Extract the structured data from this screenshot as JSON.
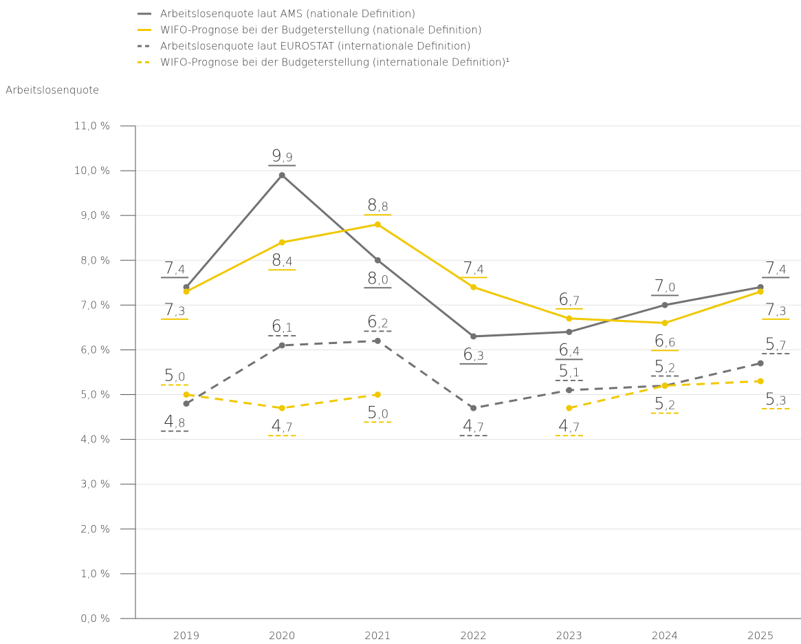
{
  "chart_data": {
    "type": "line",
    "y_axis_label": "Arbeitslosenquote",
    "categories": [
      "2019",
      "2020",
      "2021",
      "2022",
      "2023",
      "2024",
      "2025"
    ],
    "series": [
      {
        "name": "Arbeitslosenquote laut AMS (nationale Definition)",
        "color": "#727272",
        "dashed": false,
        "values": [
          7.4,
          9.9,
          8.0,
          6.3,
          6.4,
          7.0,
          7.4
        ],
        "value_labels": [
          "7,4",
          "9,9",
          "8,0",
          "6,3",
          "6,4",
          "7,0",
          "7,4"
        ]
      },
      {
        "name": "WIFO-Prognose bei der Budgeterstellung (nationale Definition)",
        "color": "#f0c800",
        "dashed": false,
        "values": [
          7.3,
          8.4,
          8.8,
          7.4,
          6.7,
          6.6,
          7.3
        ],
        "value_labels": [
          "7,3",
          "8,4",
          "8,8",
          "7,4",
          "6,7",
          "6,6",
          "7,3"
        ]
      },
      {
        "name": "Arbeitslosenquote laut EUROSTAT (internationale Definition)",
        "color": "#727272",
        "dashed": true,
        "values": [
          4.8,
          6.1,
          6.2,
          4.7,
          5.1,
          5.2,
          5.7
        ],
        "value_labels": [
          "4,8",
          "6,1",
          "6,2",
          "4,7",
          "5,1",
          "5,2",
          "5,7"
        ]
      },
      {
        "name": "WIFO-Prognose bei der Budgeterstellung (internationale Definition)¹",
        "color": "#f0c800",
        "dashed": true,
        "values": [
          5.0,
          4.7,
          5.0,
          null,
          4.7,
          5.2,
          5.3
        ],
        "value_labels": [
          "5,0",
          "4,7",
          "5,0",
          null,
          "4,7",
          "5,2",
          "5,3"
        ]
      }
    ],
    "ylim": [
      0,
      11
    ],
    "yticks": [
      {
        "value": 0,
        "label": "0,0 %"
      },
      {
        "value": 1,
        "label": "1,0 %"
      },
      {
        "value": 2,
        "label": "2,0 %"
      },
      {
        "value": 3,
        "label": "3,0 %"
      },
      {
        "value": 4,
        "label": "4,0 %"
      },
      {
        "value": 5,
        "label": "5,0 %"
      },
      {
        "value": 6,
        "label": "6,0 %"
      },
      {
        "value": 7,
        "label": "7,0 %"
      },
      {
        "value": 8,
        "label": "8,0 %"
      },
      {
        "value": 9,
        "label": "9,0 %"
      },
      {
        "value": 10,
        "label": "10,0 %"
      },
      {
        "value": 11,
        "label": "11,0 %"
      }
    ],
    "grid": true,
    "legend": "top-left"
  }
}
